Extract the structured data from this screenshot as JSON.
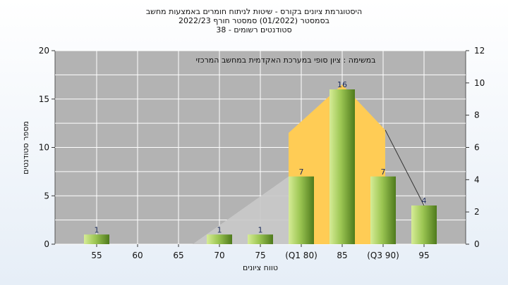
{
  "header": {
    "line1": "היסטוגרמת ציונים בקורס - שיטות לניתוח חומרים באמצעות מחשב",
    "line2": "בסמסטר  (01/2022)  סמסטר חורף 2022/23",
    "line3": "סטודנטים רשומים - 38"
  },
  "chart_data": {
    "type": "bar",
    "title": "היסטוגרמת ציונים בקורס - שיטות לניתוח חומרים באמצעות מחשב",
    "subtitle": "בסמסטר  (01/2022)  סמסטר חורף 2022/23",
    "note": "סטודנטים רשומים - 38",
    "annotation": "במשימה : ציון סופי במערכת האקדמית במחשב המרכזי",
    "categories": [
      "55",
      "60",
      "65",
      "70",
      "75",
      "(Q1 80)",
      "85",
      "(Q3 90)",
      "95"
    ],
    "values": [
      1,
      0,
      0,
      1,
      1,
      7,
      16,
      7,
      4
    ],
    "data_labels": [
      "1",
      "",
      "",
      "1",
      "1",
      "7",
      "16",
      "7",
      "4"
    ],
    "xlabel": "טווח ציונים",
    "ylabel": "מספר סטודנטים",
    "ylim": [
      0,
      20
    ],
    "yticks": [
      0,
      5,
      10,
      15,
      20
    ],
    "y2lim": [
      0,
      12
    ],
    "y2ticks": [
      0,
      2,
      4,
      6,
      8,
      10,
      12
    ],
    "grid": true,
    "colors": {
      "plot_bg": "#b3b3b3",
      "band_light": "#c8c8c8",
      "band_yellow": "#ffcc55",
      "bar_light": "#c4e07a",
      "bar_dark": "#4e7a1c",
      "grid": "#ffffff"
    }
  }
}
